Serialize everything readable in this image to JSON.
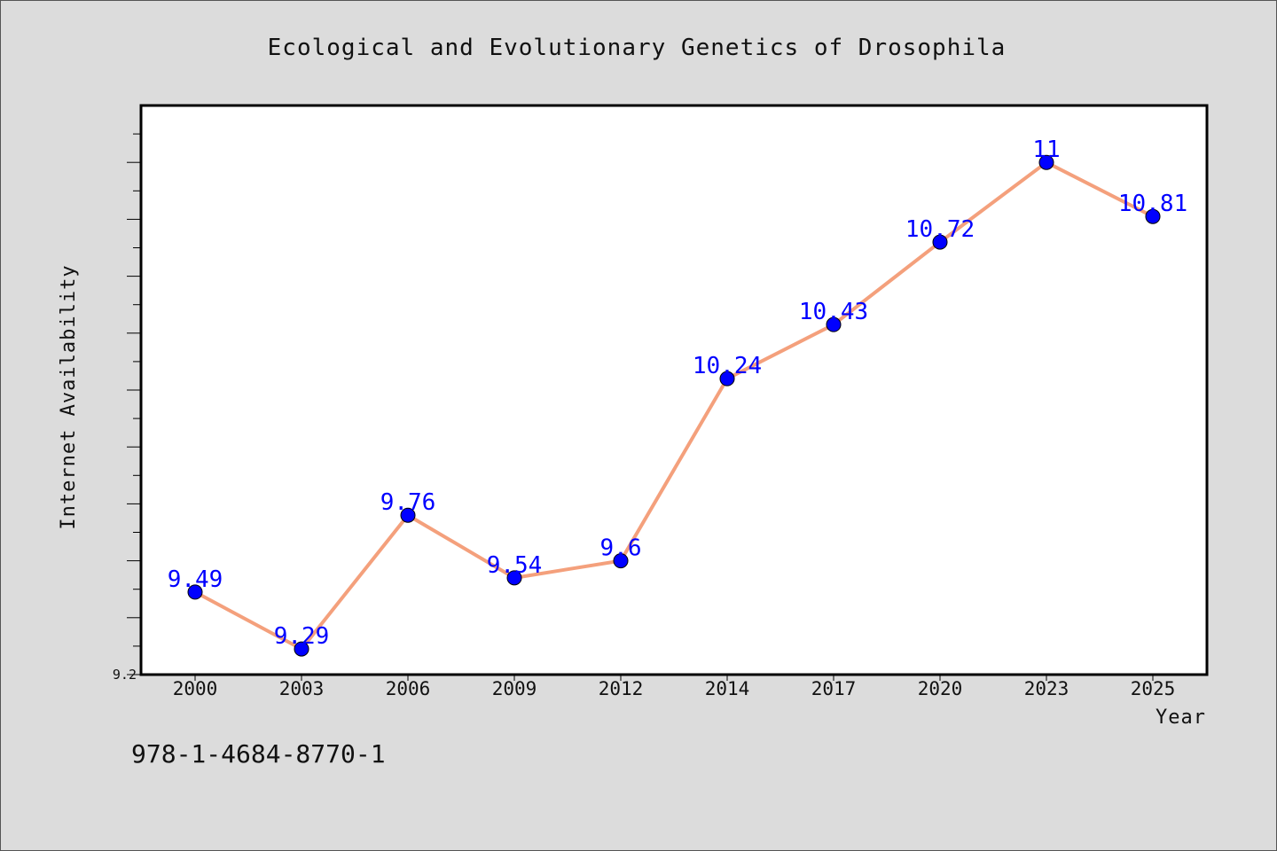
{
  "chart_data": {
    "type": "line",
    "title": "Ecological and Evolutionary Genetics of Drosophila",
    "xlabel": "Year",
    "ylabel": "Internet Availability",
    "categories": [
      "2000",
      "2003",
      "2006",
      "2009",
      "2012",
      "2014",
      "2017",
      "2020",
      "2023",
      "2025"
    ],
    "series": [
      {
        "values": [
          9.49,
          9.29,
          9.76,
          9.54,
          9.6,
          10.24,
          10.43,
          10.72,
          11,
          10.81
        ],
        "labels": [
          "9.49",
          "9.29",
          "9.76",
          "9.54",
          "9.6",
          "10.24",
          "10.43",
          "10.72",
          "11",
          "10.81"
        ]
      }
    ],
    "ylim": [
      9.2,
      11.2
    ],
    "ytick_labels": [
      "9.2"
    ],
    "grid": false,
    "colors": {
      "line": "#f4a07c",
      "marker": "#0000ff",
      "label": "#0000ff",
      "background": "#dcdcdc",
      "plot_bg": "#ffffff"
    }
  },
  "footer": {
    "isbn": "978-1-4684-8770-1"
  }
}
